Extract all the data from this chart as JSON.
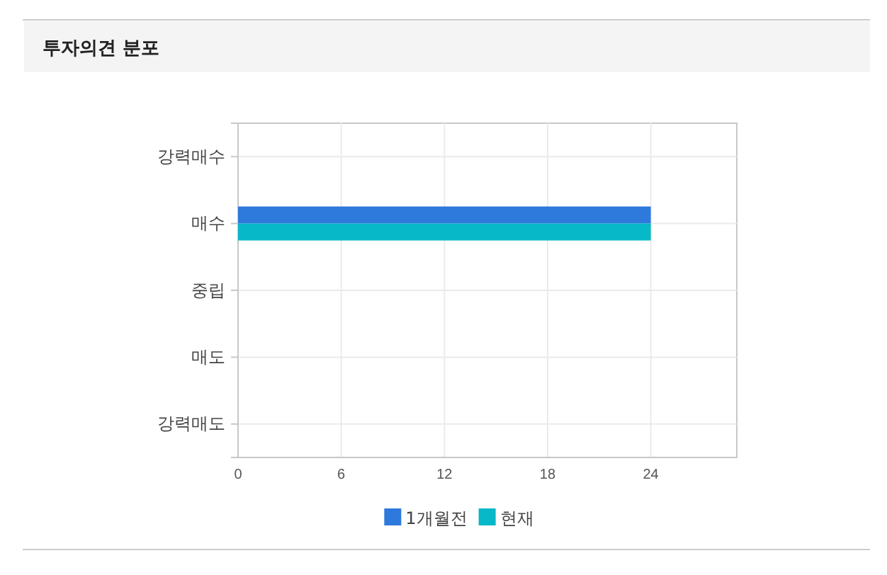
{
  "chart_data": {
    "type": "bar",
    "orientation": "horizontal",
    "title": "투자의견 분포",
    "categories": [
      "강력매수",
      "매수",
      "중립",
      "매도",
      "강력매도"
    ],
    "series": [
      {
        "name": "1개월전",
        "color": "#2d79dc",
        "values": [
          0,
          24,
          0,
          0,
          0
        ]
      },
      {
        "name": "현재",
        "color": "#06b8c8",
        "values": [
          0,
          24,
          0,
          0,
          0
        ]
      }
    ],
    "xlim": [
      0,
      29
    ],
    "xticks": [
      0,
      6,
      12,
      18,
      24
    ],
    "grid": true,
    "legend": "bottom"
  }
}
